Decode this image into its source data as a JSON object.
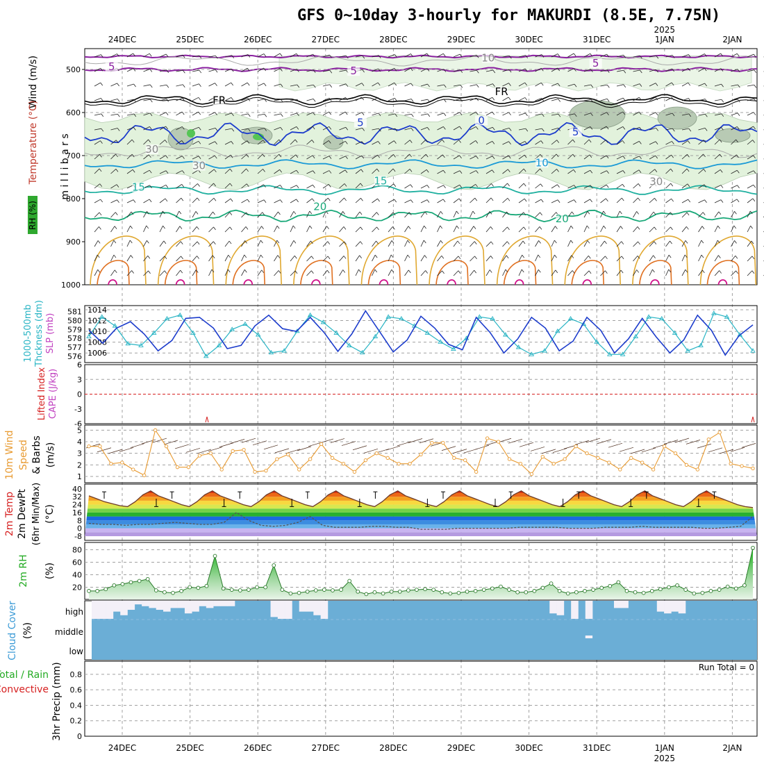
{
  "title": "GFS 0~10day 3-hourly for MAKURDI (8.5E, 7.75N)",
  "date_axis": {
    "labels": [
      "24DEC",
      "25DEC",
      "26DEC",
      "27DEC",
      "28DEC",
      "29DEC",
      "30DEC",
      "31DEC",
      "1JAN",
      "2JAN"
    ],
    "year_label": "2025",
    "year_under": "1JAN"
  },
  "colors": {
    "grid": "#a0a0a0",
    "cape": "#c040c0",
    "slp": "#1c3ccc",
    "thick": "#28b4c4",
    "wind10": "#e89a30",
    "rh": "#22aa22",
    "cloud": "#6baed6",
    "li": "#d62020",
    "temp": "#6b3a2a",
    "dew": "#555555"
  },
  "chart_data": [
    {
      "type": "contour",
      "id": "upper",
      "ylabel": "m i l l i b a r s",
      "left_labels": [
        "Wind (m/s)",
        "Temperature (°C)",
        "RH (%)"
      ],
      "yticks": [
        500,
        600,
        700,
        800,
        900,
        1000
      ],
      "contour_labels": [
        {
          "text": "5",
          "x": 0.04,
          "p": 500,
          "color": "#8a1fa0"
        },
        {
          "text": "5",
          "x": 0.4,
          "p": 510,
          "color": "#8a1fa0"
        },
        {
          "text": "5",
          "x": 0.76,
          "p": 492,
          "color": "#8a1fa0"
        },
        {
          "text": "FR",
          "x": 0.2,
          "p": 578,
          "color": "#000000"
        },
        {
          "text": "FR",
          "x": 0.62,
          "p": 558,
          "color": "#000000"
        },
        {
          "text": "5",
          "x": 0.41,
          "p": 630,
          "color": "#1c3ccc"
        },
        {
          "text": "0",
          "x": 0.59,
          "p": 625,
          "color": "#1c3ccc"
        },
        {
          "text": "5",
          "x": 0.73,
          "p": 652,
          "color": "#1c3ccc"
        },
        {
          "text": "10",
          "x": 0.68,
          "p": 723,
          "color": "#1a9ad6"
        },
        {
          "text": "15",
          "x": 0.08,
          "p": 780,
          "color": "#20b0a0"
        },
        {
          "text": "15",
          "x": 0.44,
          "p": 765,
          "color": "#20b0a0"
        },
        {
          "text": "20",
          "x": 0.35,
          "p": 825,
          "color": "#18a878"
        },
        {
          "text": "20",
          "x": 0.71,
          "p": 853,
          "color": "#18a878"
        },
        {
          "text": "10",
          "x": 0.6,
          "p": 480,
          "color": "#888888"
        },
        {
          "text": "30",
          "x": 0.1,
          "p": 692,
          "color": "#888888"
        },
        {
          "text": "30",
          "x": 0.17,
          "p": 730,
          "color": "#888888"
        },
        {
          "text": "30",
          "x": 0.85,
          "p": 767,
          "color": "#888888"
        }
      ]
    },
    {
      "type": "line",
      "id": "slp",
      "left_labels": [
        "1000-500mb",
        "Thckness (dm)",
        "SLP (mb)"
      ],
      "yticks_left": [
        576,
        577,
        578,
        579,
        580,
        581
      ],
      "yticks_right": [
        1006,
        1008,
        1010,
        1012,
        1014
      ],
      "series": [
        {
          "name": "SLP (mb)",
          "values": [
            1010.2,
            1007.8,
            1010.6,
            1011.8,
            1009.5,
            1006.4,
            1008.3,
            1012.4,
            1012.6,
            1010.6,
            1006.8,
            1007.4,
            1011.0,
            1013.0,
            1010.5,
            1010.0,
            1012.6,
            1009.8,
            1006.3,
            1009.5,
            1013.8,
            1010.0,
            1006.2,
            1008.4,
            1012.8,
            1010.6,
            1007.6,
            1006.6,
            1012.6,
            1009.8,
            1006.0,
            1008.6,
            1012.6,
            1010.6,
            1006.4,
            1008.2,
            1012.6,
            1010.2,
            1006.0,
            1008.6,
            1012.4,
            1009.0,
            1006.0,
            1008.4,
            1013.0,
            1010.2,
            1005.6,
            1009.2,
            1011.2
          ]
        },
        {
          "name": "1000-500mb Thckness (dm)",
          "values": [
            578.2,
            580.4,
            579.4,
            577.4,
            577.2,
            578.6,
            580.2,
            580.6,
            578.6,
            576.0,
            577.2,
            579.0,
            579.6,
            578.4,
            576.4,
            576.6,
            578.8,
            580.6,
            579.8,
            578.6,
            577.2,
            576.4,
            578.2,
            580.4,
            580.2,
            579.4,
            578.6,
            577.6,
            576.8,
            578.0,
            580.4,
            580.2,
            578.4,
            577.0,
            576.2,
            576.6,
            578.8,
            580.2,
            579.6,
            577.6,
            576.2,
            576.2,
            578.2,
            580.4,
            580.2,
            578.6,
            576.6,
            577.2,
            580.8,
            580.4,
            578.4,
            576.6
          ]
        }
      ]
    },
    {
      "type": "line",
      "id": "cape",
      "left_labels": [
        "CAPE (J/kg)",
        "Lifted Index"
      ],
      "yticks": [
        -6,
        -3,
        0,
        3,
        6
      ],
      "ytick_labels": [
        "6",
        "3",
        "0",
        "-3",
        "-6"
      ]
    },
    {
      "type": "line",
      "id": "wind10",
      "left_labels": [
        "10m Wind",
        "Speed",
        "& Barbs",
        "(m/s)"
      ],
      "yticks": [
        1,
        2,
        3,
        4,
        5
      ],
      "series": [
        {
          "name": "10m Wind Speed",
          "values": [
            3.6,
            3.6,
            2.1,
            2.2,
            1.6,
            1.1,
            5.0,
            3.6,
            1.8,
            1.8,
            2.8,
            3.0,
            1.6,
            3.2,
            3.3,
            1.4,
            1.5,
            2.5,
            2.9,
            1.6,
            2.5,
            3.8,
            2.6,
            2.1,
            1.4,
            2.4,
            3.0,
            2.6,
            2.1,
            2.1,
            2.9,
            3.9,
            3.9,
            2.6,
            2.4,
            1.4,
            4.3,
            4.0,
            2.5,
            2.1,
            1.2,
            2.7,
            2.1,
            2.5,
            3.6,
            3.0,
            2.6,
            2.2,
            1.6,
            2.6,
            2.2,
            1.6,
            3.6,
            3.0,
            2.0,
            1.6,
            4.2,
            4.8,
            2.1,
            1.9,
            1.7
          ]
        }
      ]
    },
    {
      "type": "line",
      "id": "temp",
      "left_labels": [
        "2m Temp",
        "2m DewPt",
        "(6hr Min/Max)",
        "(°C)"
      ],
      "yticks": [
        -8,
        0,
        8,
        16,
        24,
        32,
        40
      ],
      "series": [
        {
          "name": "2m Temp",
          "values": [
            33,
            30,
            27,
            25,
            23,
            22,
            27,
            34,
            38,
            33,
            30,
            27,
            24,
            22,
            27,
            34,
            38,
            33,
            30,
            27,
            24,
            22,
            27,
            34,
            38,
            33,
            30,
            27,
            24,
            22,
            27,
            34,
            38,
            33,
            30,
            27,
            24,
            22,
            27,
            34,
            38,
            33,
            30,
            27,
            24,
            22,
            27,
            34,
            38,
            33,
            30,
            27,
            24,
            22,
            27,
            34,
            38,
            33,
            30,
            27,
            24,
            22,
            27,
            34,
            38,
            33,
            30,
            27,
            24,
            22,
            27,
            34,
            38,
            33,
            30,
            27,
            24,
            22,
            27,
            34,
            38,
            33,
            30,
            27,
            24,
            22,
            21
          ]
        },
        {
          "name": "2m DewPt",
          "values": [
            5,
            4,
            4,
            3,
            4,
            4,
            5,
            6,
            5,
            4,
            4,
            6,
            16,
            8,
            3,
            2,
            3,
            6,
            12,
            3,
            1,
            1,
            1,
            2,
            2,
            1,
            1,
            -1,
            -1,
            -1,
            0,
            0,
            0,
            0,
            0,
            1,
            1,
            1,
            1,
            0,
            0,
            0,
            1,
            1,
            1,
            2,
            1,
            1,
            1,
            1,
            0,
            0,
            1,
            2,
            12
          ]
        }
      ]
    },
    {
      "type": "area",
      "id": "rh",
      "left_labels": [
        "2m RH",
        "(%)"
      ],
      "yticks": [
        20,
        40,
        60,
        80
      ],
      "series": [
        {
          "name": "2m RH",
          "values": [
            14,
            14,
            17,
            23,
            25,
            28,
            30,
            33,
            15,
            12,
            11,
            14,
            20,
            19,
            22,
            70,
            18,
            16,
            15,
            16,
            20,
            20,
            55,
            16,
            10,
            11,
            13,
            15,
            16,
            15,
            16,
            30,
            13,
            9,
            12,
            10,
            13,
            13,
            15,
            16,
            17,
            16,
            12,
            10,
            11,
            13,
            14,
            16,
            18,
            21,
            16,
            12,
            12,
            14,
            19,
            26,
            14,
            10,
            12,
            14,
            16,
            19,
            22,
            28,
            14,
            12,
            11,
            14,
            17,
            20,
            23,
            16,
            10,
            11,
            14,
            16,
            21,
            18,
            23,
            83
          ]
        }
      ]
    },
    {
      "type": "bar",
      "id": "cloud",
      "left_labels": [
        "Cloud Cover",
        "(%)"
      ],
      "row_labels": [
        "high",
        "middle",
        "low"
      ],
      "high_values": [
        100,
        100,
        100,
        60,
        80,
        50,
        20,
        30,
        40,
        50,
        60,
        40,
        40,
        70,
        60,
        30,
        40,
        30,
        30,
        30,
        0,
        0,
        0,
        0,
        0,
        90,
        100,
        100,
        0,
        60,
        60,
        80,
        100,
        0,
        0,
        0,
        0,
        0,
        0,
        0,
        0,
        0,
        0,
        0,
        0,
        0,
        0,
        0,
        0,
        0,
        0,
        0,
        0,
        0,
        0,
        0,
        0,
        0,
        0,
        0,
        0,
        0,
        0,
        0,
        70,
        80,
        0,
        100,
        0,
        100,
        0,
        0,
        0,
        40,
        40,
        0,
        0,
        0,
        0,
        60,
        70,
        60,
        70,
        0,
        0,
        0,
        0,
        0,
        0,
        0,
        0,
        0,
        0
      ],
      "low_marks": [
        {
          "i": 69,
          "v": 30
        }
      ]
    },
    {
      "type": "bar",
      "id": "precip",
      "left_labels": [
        "Total / Rain",
        "Convective",
        "3hr Precip (mm)"
      ],
      "yticks": [
        0,
        0.2,
        0.4,
        0.6,
        0.8
      ],
      "run_total": "Run Total = 0"
    }
  ]
}
